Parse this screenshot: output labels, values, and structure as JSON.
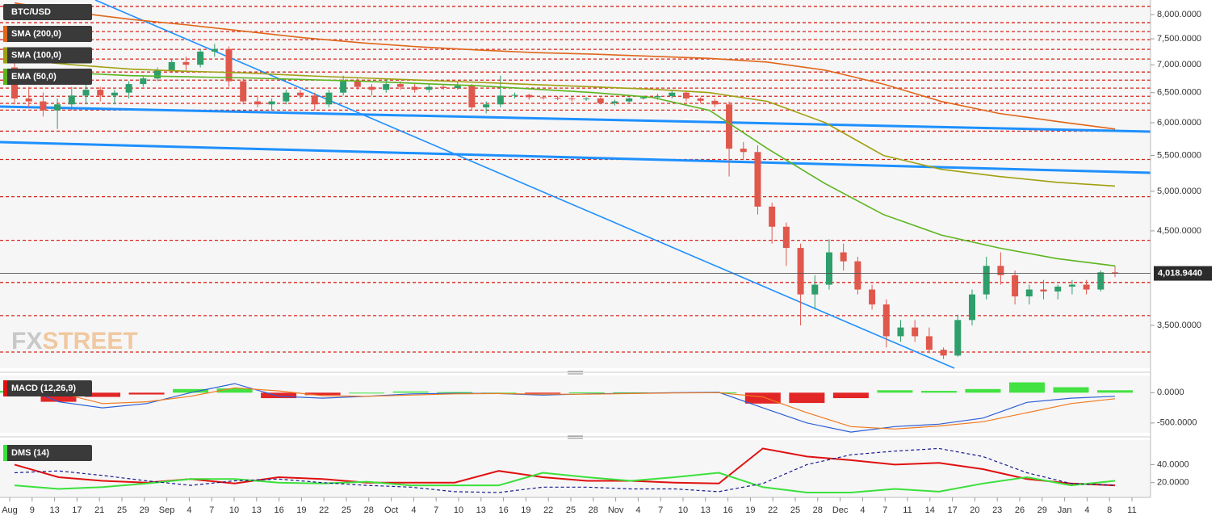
{
  "chart_data": [
    {
      "type": "candlestick",
      "title": "BTC/USD",
      "log_scale": true,
      "ylim": [
        3123,
        8316
      ],
      "yticks": [
        {
          "value": 8000,
          "label": "8,000.0000"
        },
        {
          "value": 7500,
          "label": "7,500.0000"
        },
        {
          "value": 7000,
          "label": "7,000.0000"
        },
        {
          "value": 6500,
          "label": "6,500.0000"
        },
        {
          "value": 6000,
          "label": "6,000.0000"
        },
        {
          "value": 5500,
          "label": "5,500.0000"
        },
        {
          "value": 5000,
          "label": "5,000.0000"
        },
        {
          "value": 4500,
          "label": "4,500.0000"
        },
        {
          "value": 3500,
          "label": "3,500.0000"
        }
      ],
      "up_color": "#2e9e6a",
      "down_color": "#e0574c",
      "ohlc": [
        [
          6950,
          7100,
          6300,
          6400
        ],
        [
          6400,
          6600,
          6250,
          6350
        ],
        [
          6350,
          6500,
          6100,
          6200
        ],
        [
          6200,
          6400,
          5900,
          6300
        ],
        [
          6300,
          6600,
          6200,
          6450
        ],
        [
          6450,
          6650,
          6300,
          6550
        ],
        [
          6550,
          6600,
          6350,
          6450
        ],
        [
          6450,
          6550,
          6300,
          6500
        ],
        [
          6500,
          6700,
          6400,
          6650
        ],
        [
          6650,
          6800,
          6600,
          6750
        ],
        [
          6750,
          6950,
          6700,
          6900
        ],
        [
          6900,
          7100,
          6850,
          7050
        ],
        [
          7050,
          7150,
          6900,
          7000
        ],
        [
          7000,
          7300,
          6950,
          7250
        ],
        [
          7250,
          7400,
          7150,
          7300
        ],
        [
          7300,
          7350,
          6600,
          6700
        ],
        [
          6700,
          6750,
          6300,
          6350
        ],
        [
          6350,
          6450,
          6250,
          6300
        ],
        [
          6300,
          6400,
          6200,
          6350
        ],
        [
          6350,
          6550,
          6300,
          6500
        ],
        [
          6500,
          6550,
          6400,
          6450
        ],
        [
          6450,
          6500,
          6200,
          6300
        ],
        [
          6300,
          6550,
          6250,
          6500
        ],
        [
          6500,
          6800,
          6450,
          6700
        ],
        [
          6700,
          6750,
          6550,
          6600
        ],
        [
          6600,
          6650,
          6450,
          6550
        ],
        [
          6550,
          6750,
          6500,
          6650
        ],
        [
          6650,
          6700,
          6550,
          6600
        ],
        [
          6600,
          6650,
          6500,
          6550
        ],
        [
          6550,
          6650,
          6500,
          6600
        ],
        [
          6600,
          6650,
          6550,
          6580
        ],
        [
          6580,
          6700,
          6550,
          6620
        ],
        [
          6620,
          6650,
          6200,
          6250
        ],
        [
          6250,
          6350,
          6150,
          6300
        ],
        [
          6300,
          6800,
          6250,
          6450
        ],
        [
          6450,
          6500,
          6400,
          6460
        ],
        [
          6460,
          6480,
          6380,
          6420
        ],
        [
          6420,
          6450,
          6380,
          6410
        ],
        [
          6410,
          6440,
          6370,
          6400
        ],
        [
          6400,
          6430,
          6350,
          6390
        ],
        [
          6390,
          6420,
          6360,
          6400
        ],
        [
          6400,
          6420,
          6300,
          6320
        ],
        [
          6320,
          6380,
          6280,
          6350
        ],
        [
          6350,
          6420,
          6330,
          6400
        ],
        [
          6400,
          6450,
          6380,
          6420
        ],
        [
          6420,
          6480,
          6380,
          6440
        ],
        [
          6440,
          6550,
          6400,
          6500
        ],
        [
          6500,
          6520,
          6350,
          6400
        ],
        [
          6400,
          6420,
          6320,
          6360
        ],
        [
          6360,
          6400,
          6250,
          6300
        ],
        [
          6300,
          6350,
          5200,
          5600
        ],
        [
          5600,
          5700,
          5450,
          5550
        ],
        [
          5550,
          5650,
          4700,
          4800
        ],
        [
          4800,
          4850,
          4350,
          4550
        ],
        [
          4550,
          4600,
          4100,
          4300
        ],
        [
          4300,
          4350,
          3500,
          3800
        ],
        [
          3800,
          4000,
          3650,
          3900
        ],
        [
          3900,
          4400,
          3850,
          4250
        ],
        [
          4250,
          4350,
          4050,
          4150
        ],
        [
          4150,
          4200,
          3800,
          3850
        ],
        [
          3850,
          3900,
          3650,
          3700
        ],
        [
          3700,
          3750,
          3300,
          3400
        ],
        [
          3400,
          3550,
          3350,
          3480
        ],
        [
          3480,
          3550,
          3350,
          3400
        ],
        [
          3400,
          3480,
          3250,
          3280
        ],
        [
          3280,
          3300,
          3200,
          3230
        ],
        [
          3230,
          3600,
          3220,
          3550
        ],
        [
          3550,
          3850,
          3500,
          3800
        ],
        [
          3800,
          4200,
          3750,
          4100
        ],
        [
          4100,
          4250,
          3900,
          4000
        ],
        [
          4000,
          4050,
          3700,
          3780
        ],
        [
          3780,
          3900,
          3700,
          3850
        ],
        [
          3850,
          3950,
          3750,
          3830
        ],
        [
          3830,
          3900,
          3750,
          3880
        ],
        [
          3880,
          3950,
          3800,
          3900
        ],
        [
          3900,
          3950,
          3800,
          3850
        ],
        [
          3850,
          4050,
          3830,
          4030
        ],
        [
          4030,
          4100,
          3980,
          4019
        ]
      ],
      "indicators": [
        {
          "name": "SMA (200,0)",
          "color": "#e0661a",
          "values": [
            8250,
            8050,
            7900,
            7780,
            7650,
            7520,
            7420,
            7340,
            7280,
            7230,
            7200,
            7160,
            7120,
            7050,
            6900,
            6650,
            6350,
            6150,
            6020,
            5900
          ]
        },
        {
          "name": "SMA (100,0)",
          "color": "#a0a012",
          "values": [
            7100,
            7000,
            6920,
            6880,
            6850,
            6800,
            6760,
            6720,
            6680,
            6640,
            6600,
            6560,
            6500,
            6350,
            6000,
            5500,
            5300,
            5200,
            5120,
            5070
          ]
        },
        {
          "name": "EMA (50,0)",
          "color": "#5cb51f",
          "values": [
            6900,
            6850,
            6800,
            6780,
            6760,
            6730,
            6700,
            6660,
            6620,
            6560,
            6500,
            6420,
            6200,
            5600,
            5100,
            4700,
            4450,
            4300,
            4180,
            4100
          ]
        }
      ],
      "levels": [
        8175,
        7830,
        7646,
        7483,
        7293,
        7107,
        6866,
        6720,
        6578,
        6437,
        6317,
        6205,
        5867,
        5441,
        4928,
        4388,
        3923,
        3592,
        3260
      ],
      "level_color": "#d9251b",
      "last_price": {
        "value": 4018.944,
        "label": "4,018.9440"
      },
      "watermark": [
        "FX",
        "STREET"
      ]
    },
    {
      "type": "macd",
      "title": "MACD (12,26,9)",
      "ylim": [
        -662,
        284
      ],
      "yticks": [
        {
          "value": 0,
          "label": "0.0000"
        },
        {
          "value": -500,
          "label": "-500.0000"
        }
      ],
      "series": [
        {
          "color": "#2d5fd6",
          "values": [
            150,
            -150,
            -250,
            -180,
            0,
            150,
            -60,
            -90,
            -60,
            -20,
            -10,
            -15,
            -40,
            -20,
            -10,
            0,
            5,
            -250,
            -500,
            -650,
            -560,
            -520,
            -420,
            -160,
            -90,
            -60
          ]
        },
        {
          "color": "#f07a20",
          "values": [
            120,
            0,
            -180,
            -150,
            -60,
            80,
            30,
            -50,
            -60,
            -40,
            -20,
            -15,
            -25,
            -25,
            -15,
            -5,
            0,
            -70,
            -330,
            -560,
            -600,
            -550,
            -480,
            -330,
            -180,
            -100
          ]
        }
      ],
      "histogram": [
        30,
        -150,
        -70,
        -30,
        60,
        70,
        -90,
        -40,
        0,
        20,
        10,
        0,
        -15,
        5,
        5,
        5,
        5,
        -180,
        -170,
        -90,
        40,
        30,
        60,
        170,
        90,
        40
      ],
      "up_color": "#2de02d",
      "down_color": "#e01010"
    },
    {
      "type": "line",
      "title": "DMS (14)",
      "ylim": [
        3.6,
        67.3
      ],
      "yticks": [
        {
          "value": 40,
          "label": "40.0000"
        },
        {
          "value": 20,
          "label": "20.0000"
        }
      ],
      "series": [
        {
          "color": "#e01010",
          "values": [
            40,
            26,
            22,
            20,
            24,
            19,
            26,
            24,
            20,
            20,
            20,
            33,
            26,
            22,
            22,
            20,
            19,
            58,
            49,
            45,
            40,
            42,
            35,
            24,
            19,
            17
          ]
        },
        {
          "color": "#3be03b",
          "values": [
            17,
            13,
            15,
            19,
            24,
            24,
            20,
            19,
            21,
            17,
            17,
            17,
            31,
            26,
            22,
            26,
            31,
            15,
            9,
            9,
            13,
            10,
            19,
            26,
            17,
            22
          ]
        },
        {
          "color": "#1a1a8c",
          "dashed": true,
          "values": [
            31,
            33,
            28,
            22,
            17,
            22,
            24,
            20,
            17,
            15,
            10,
            9,
            15,
            15,
            13,
            13,
            10,
            19,
            40,
            51,
            55,
            58,
            49,
            31,
            19,
            17
          ]
        }
      ]
    }
  ],
  "x_axis_labels": [
    "Aug",
    "9",
    "13",
    "17",
    "21",
    "25",
    "29",
    "Sep",
    "4",
    "7",
    "10",
    "13",
    "16",
    "19",
    "22",
    "25",
    "28",
    "Oct",
    "4",
    "7",
    "10",
    "13",
    "16",
    "19",
    "22",
    "25",
    "28",
    "Nov",
    "4",
    "7",
    "10",
    "13",
    "16",
    "19",
    "22",
    "25",
    "28",
    "Dec",
    "4",
    "7",
    "11",
    "14",
    "17",
    "20",
    "23",
    "26",
    "29",
    "Jan",
    "4",
    "8",
    "11"
  ]
}
